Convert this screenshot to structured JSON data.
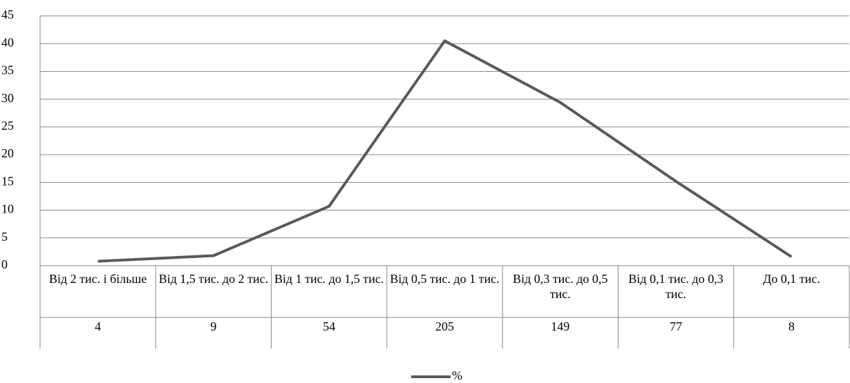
{
  "chart_data": {
    "type": "line",
    "categories": [
      "Від 2 тис. і більше",
      "Від 1,5 тис. до 2 тис.",
      "Від 1 тис. до 1,5 тис.",
      "Від 0,5 тис. до 1 тис.",
      "Від 0,3 тис. до 0,5 тис.",
      "Від 0,1 тис. до 0,3 тис.",
      "До 0,1 тис."
    ],
    "category_counts": [
      4,
      9,
      54,
      205,
      149,
      77,
      8
    ],
    "series": [
      {
        "name": "%",
        "color": "#595959",
        "values": [
          0.8,
          1.8,
          10.7,
          40.5,
          29.4,
          15.2,
          1.6
        ]
      }
    ],
    "ylim": [
      0,
      45
    ],
    "yticks": [
      0,
      5,
      10,
      15,
      20,
      25,
      30,
      35,
      40,
      45
    ],
    "grid": true,
    "legend": "bottom"
  }
}
